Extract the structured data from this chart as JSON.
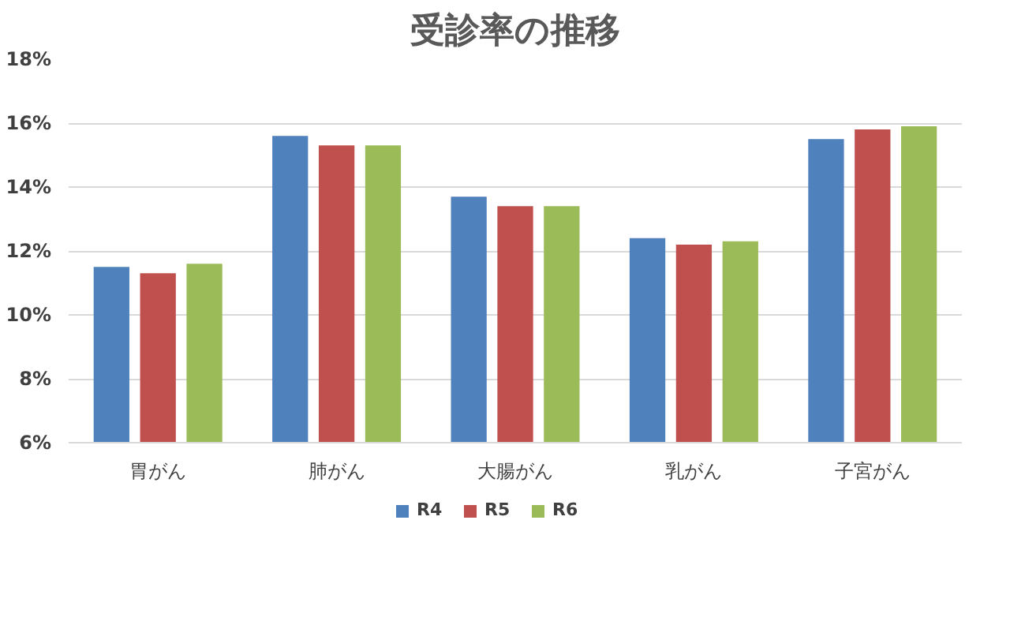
{
  "chart_data": {
    "type": "bar",
    "title": "受診率の推移",
    "categories": [
      "胃がん",
      "肺がん",
      "大腸がん",
      "乳がん",
      "子宮がん"
    ],
    "series": [
      {
        "name": "R4",
        "color": "#4f81bd",
        "values": [
          11.5,
          15.6,
          13.7,
          12.4,
          15.5
        ]
      },
      {
        "name": "R5",
        "color": "#c0504d",
        "values": [
          11.3,
          15.3,
          13.4,
          12.2,
          15.8
        ]
      },
      {
        "name": "R6",
        "color": "#9bbb59",
        "values": [
          11.6,
          15.3,
          13.4,
          12.3,
          15.9
        ]
      }
    ],
    "ylim": [
      6,
      18
    ],
    "yticks": [
      {
        "value": 6,
        "label": "6%"
      },
      {
        "value": 8,
        "label": "8%"
      },
      {
        "value": 10,
        "label": "10%"
      },
      {
        "value": 12,
        "label": "12%"
      },
      {
        "value": 14,
        "label": "14%"
      },
      {
        "value": 16,
        "label": "16%"
      },
      {
        "value": 18,
        "label": "18%"
      }
    ],
    "grid": "y",
    "legend": "bottom"
  }
}
